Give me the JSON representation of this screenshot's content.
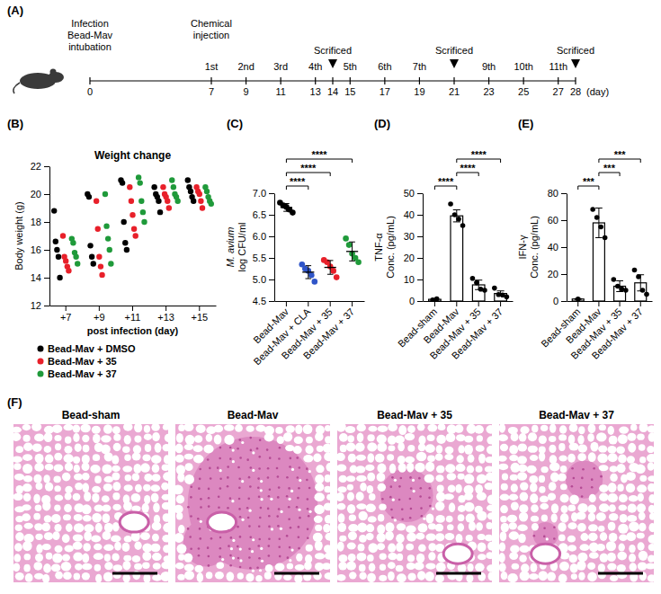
{
  "timeline": {
    "panel": "(A)",
    "start_labels": [
      "Infection",
      "Bead-Mav",
      "intubation"
    ],
    "injection_title": [
      "Chemical",
      "injection"
    ],
    "xlim": [
      0,
      28
    ],
    "ticks": [
      0,
      7,
      9,
      11,
      13,
      14,
      15,
      17,
      19,
      21,
      23,
      25,
      27,
      28
    ],
    "unit": "(day)",
    "injections": [
      {
        "day": 7,
        "label": "1st"
      },
      {
        "day": 9,
        "label": "2nd"
      },
      {
        "day": 11,
        "label": "3rd"
      },
      {
        "day": 13,
        "label": "4th"
      },
      {
        "day": 15,
        "label": "5th"
      },
      {
        "day": 17,
        "label": "6th"
      },
      {
        "day": 19,
        "label": "7th"
      },
      {
        "day": 23,
        "label": "9th"
      },
      {
        "day": 25,
        "label": "10th"
      },
      {
        "day": 27,
        "label": "11th"
      }
    ],
    "sacrifices": [
      {
        "day": 14,
        "label": "Scrificed"
      },
      {
        "day": 21,
        "label": "Scrificed"
      },
      {
        "day": 28,
        "label": "Scrificed"
      }
    ]
  },
  "chart_data": [
    {
      "panel": "(B)",
      "type": "scatter",
      "title": "Weight change",
      "x_label": "post infection (day)",
      "y_label": "Body weight (g)",
      "categories": [
        "+7",
        "+9",
        "+11",
        "+13",
        "+15"
      ],
      "ylim": [
        12,
        22
      ],
      "yticks": [
        12,
        14,
        16,
        18,
        20,
        22
      ],
      "legend": "bottom",
      "series": [
        {
          "name": "Bead-Mav + DMSO",
          "color": "#000000",
          "values": [
            [
              18.8,
              16.6,
              16.0,
              15.5,
              14.0
            ],
            [
              20.0,
              19.8,
              16.3,
              15.5,
              15.0
            ],
            [
              21.0,
              20.8,
              18.0,
              16.5,
              16.0
            ],
            [
              20.5,
              20.0,
              19.8,
              19.5,
              18.7
            ],
            [
              21.0,
              20.5,
              20.2,
              19.8,
              19.5
            ]
          ]
        },
        {
          "name": "Bead-Mav + 35",
          "color": "#e8202a",
          "values": [
            [
              17.0,
              15.5,
              15.2,
              14.8,
              14.5
            ],
            [
              19.5,
              17.5,
              15.5,
              14.8,
              14.2
            ],
            [
              20.5,
              19.5,
              18.5,
              17.5,
              17.0
            ],
            [
              20.5,
              20.0,
              19.8,
              19.5,
              19.0
            ],
            [
              20.5,
              20.2,
              20.0,
              19.5,
              19.0
            ]
          ]
        },
        {
          "name": "Bead-Mav + 37",
          "color": "#1f9a3a",
          "values": [
            [
              16.8,
              16.5,
              15.8,
              15.5,
              15.0
            ],
            [
              20.0,
              17.7,
              16.8,
              16.0,
              15.0
            ],
            [
              21.2,
              20.8,
              19.5,
              18.7,
              18.0
            ],
            [
              21.0,
              20.5,
              20.0,
              19.8,
              19.5
            ],
            [
              20.5,
              20.2,
              19.8,
              19.5,
              19.3
            ]
          ]
        }
      ]
    },
    {
      "panel": "(C)",
      "type": "scatter",
      "y_label": [
        "M. avium",
        "log CFU/ml"
      ],
      "categories": [
        "Bead-Mav",
        "Bead-Mav + CLA",
        "Bead-Mav + 35",
        "Bead-Mav + 37"
      ],
      "colors": [
        "#000000",
        "#2f55c8",
        "#e8202a",
        "#1f9a3a"
      ],
      "values": [
        [
          6.78,
          6.72,
          6.68,
          6.62,
          6.55
        ],
        [
          5.35,
          5.25,
          5.2,
          5.1,
          4.95
        ],
        [
          5.45,
          5.4,
          5.3,
          5.2,
          5.05
        ],
        [
          5.95,
          5.8,
          5.6,
          5.5,
          5.4
        ]
      ],
      "means": [
        6.67,
        5.17,
        5.28,
        5.65
      ],
      "errors": [
        0.09,
        0.15,
        0.16,
        0.22
      ],
      "ylim": [
        4.5,
        7.0
      ],
      "yticks": [
        4.5,
        {
          "value": 5,
          "label": "5.0"
        },
        5.5,
        {
          "value": 6,
          "label": "6.0"
        },
        6.5,
        {
          "value": 7,
          "label": "7.0"
        }
      ],
      "annotations": [
        {
          "from": 0,
          "to": 1,
          "label": "****"
        },
        {
          "from": 0,
          "to": 2,
          "label": "****"
        },
        {
          "from": 0,
          "to": 3,
          "label": "****"
        }
      ]
    },
    {
      "panel": "(D)",
      "type": "bar",
      "y_label": [
        "TNF-α",
        "Conc. (pg/mL)"
      ],
      "categories": [
        "Bead-sham",
        "Bead-Mav",
        "Bead-Mav + 35",
        "Bead-Mav + 37"
      ],
      "values": [
        0.8,
        39.5,
        7.5,
        3.5
      ],
      "errors": [
        0.3,
        2.8,
        2.2,
        1.2
      ],
      "points": [
        [
          0.5,
          1.0
        ],
        [
          45,
          40,
          38,
          35
        ],
        [
          10.5,
          8.5,
          5.5,
          5
        ],
        [
          6,
          3,
          2.8,
          2
        ]
      ],
      "color": "#ffffff",
      "ylim": [
        0,
        50
      ],
      "yticks": [
        0,
        10,
        20,
        30,
        40,
        50
      ],
      "annotations": [
        {
          "from": 0,
          "to": 1,
          "label": "****"
        },
        {
          "from": 1,
          "to": 2,
          "label": "****"
        },
        {
          "from": 1,
          "to": 3,
          "label": "****"
        }
      ]
    },
    {
      "panel": "(E)",
      "type": "bar",
      "y_label": [
        "IFN-γ",
        "Conc. (pg/mL)"
      ],
      "categories": [
        "Bead-sham",
        "Bead-Mav",
        "Bead-Mav + 35",
        "Bead-Mav + 37"
      ],
      "values": [
        1.5,
        58,
        11,
        13.5
      ],
      "errors": [
        0.3,
        11,
        4,
        6
      ],
      "points": [
        [
          1.5
        ],
        [
          68,
          62,
          55,
          47
        ],
        [
          16,
          11,
          9,
          8
        ],
        [
          23,
          18,
          8,
          5
        ]
      ],
      "color": "#ffffff",
      "ylim": [
        0,
        80
      ],
      "yticks": [
        0,
        20,
        40,
        60,
        80
      ],
      "annotations": [
        {
          "from": 0,
          "to": 1,
          "label": "***"
        },
        {
          "from": 1,
          "to": 2,
          "label": "***"
        },
        {
          "from": 1,
          "to": 3,
          "label": "***"
        }
      ]
    }
  ],
  "histology": {
    "panel": "(F)",
    "images": [
      "Bead-sham",
      "Bead-Mav",
      "Bead-Mav + 35",
      "Bead-Mav + 37"
    ]
  }
}
